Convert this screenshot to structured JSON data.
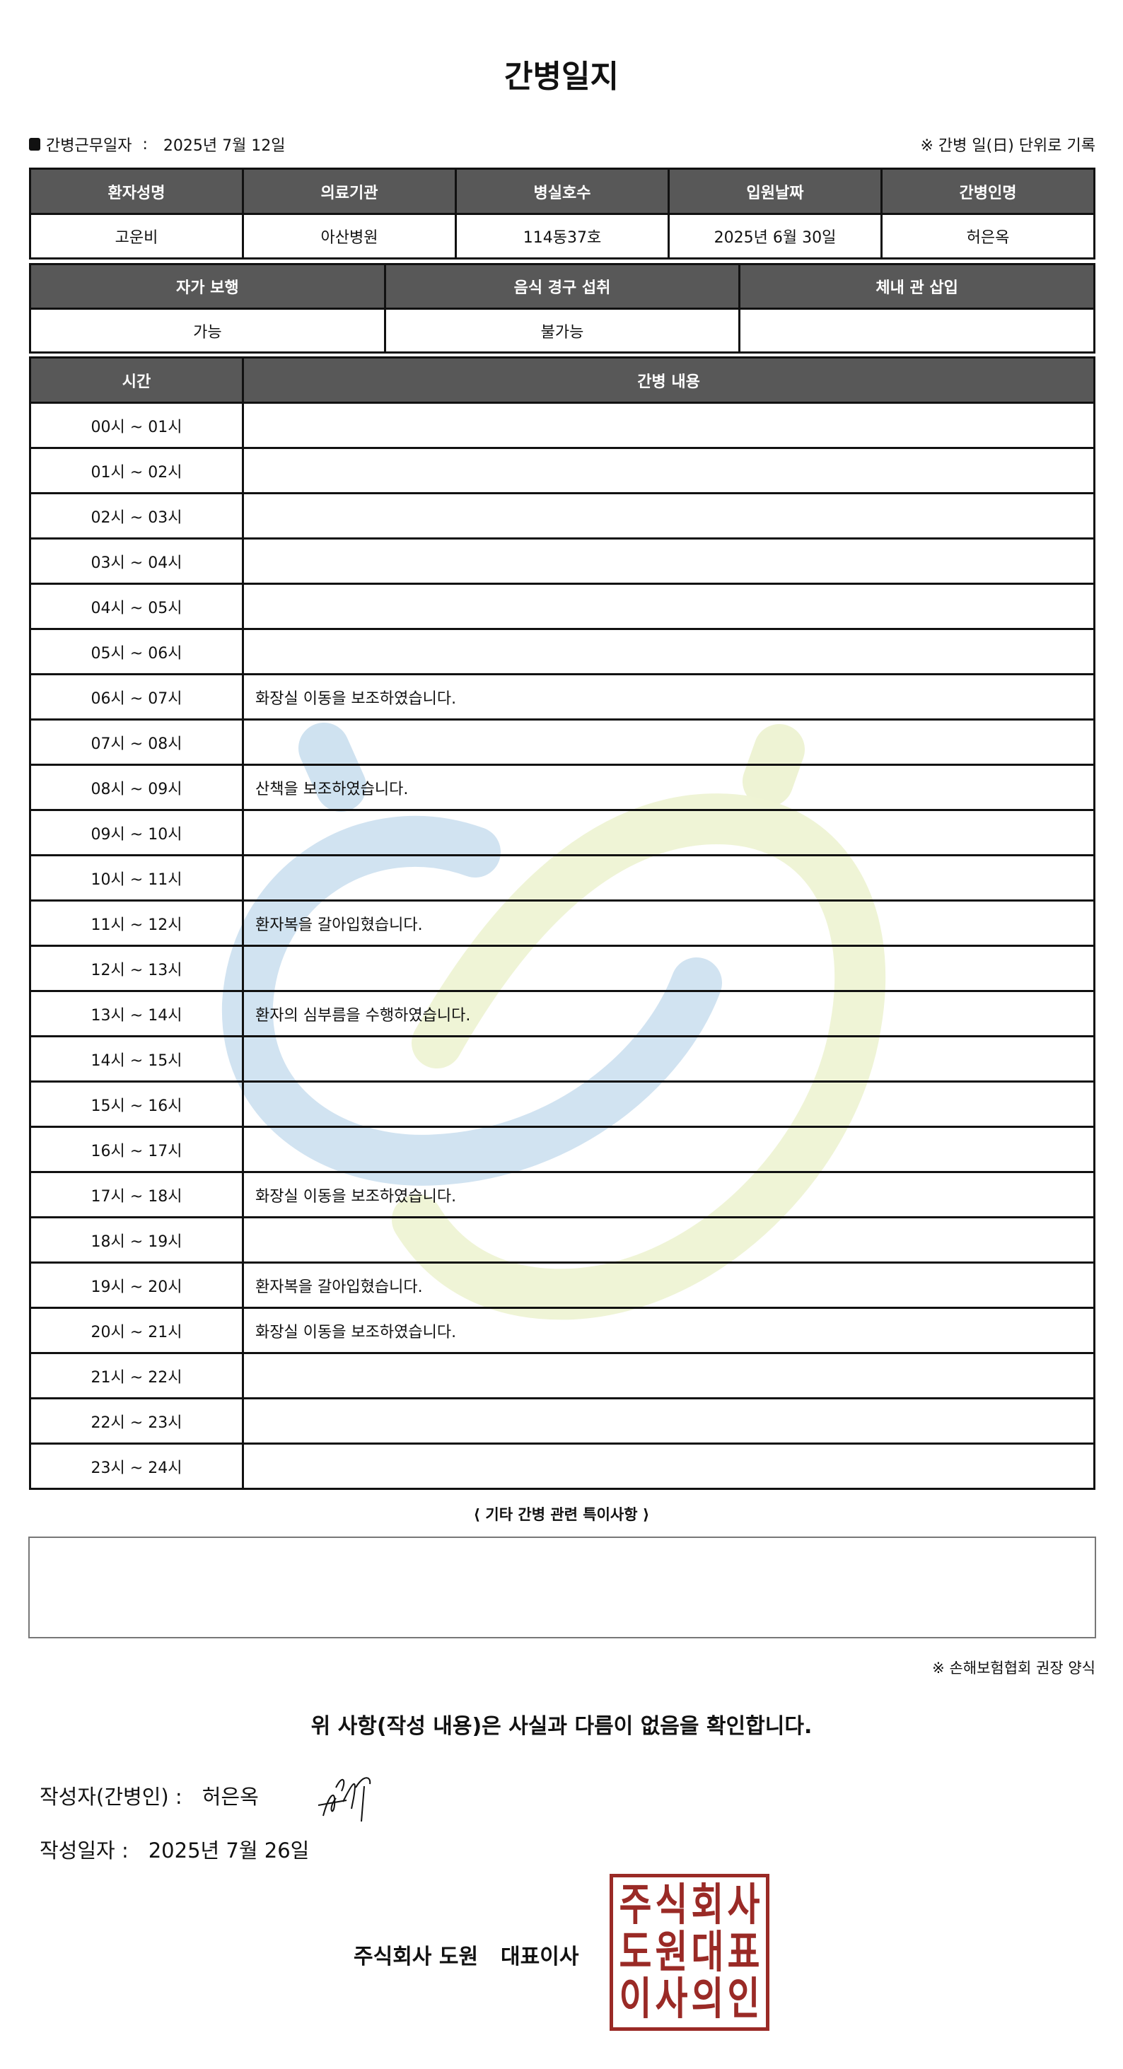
{
  "title": "간병일지",
  "work_date_label": "간병근무일자",
  "work_date": "2025년 7월 12일",
  "unit_note": "※ 간병 일(日) 단위로 기록",
  "patient_table": {
    "headers": [
      "환자성명",
      "의료기관",
      "병실호수",
      "입원날짜",
      "간병인명"
    ],
    "values": [
      "고운비",
      "아산병원",
      "114동37호",
      "2025년 6월 30일",
      "허은옥"
    ]
  },
  "status_table": {
    "headers": [
      "자가 보행",
      "음식 경구 섭취",
      "체내 관 삽입"
    ],
    "values": [
      "가능",
      "불가능",
      ""
    ]
  },
  "log_table": {
    "headers": [
      "시간",
      "간병 내용"
    ],
    "rows": [
      [
        "00시 ~ 01시",
        ""
      ],
      [
        "01시 ~ 02시",
        ""
      ],
      [
        "02시 ~ 03시",
        ""
      ],
      [
        "03시 ~ 04시",
        ""
      ],
      [
        "04시 ~ 05시",
        ""
      ],
      [
        "05시 ~ 06시",
        ""
      ],
      [
        "06시 ~ 07시",
        "화장실 이동을 보조하였습니다."
      ],
      [
        "07시 ~ 08시",
        ""
      ],
      [
        "08시 ~ 09시",
        "산책을 보조하였습니다."
      ],
      [
        "09시 ~ 10시",
        ""
      ],
      [
        "10시 ~ 11시",
        ""
      ],
      [
        "11시 ~ 12시",
        "환자복을 갈아입혔습니다."
      ],
      [
        "12시 ~ 13시",
        ""
      ],
      [
        "13시 ~ 14시",
        "환자의 심부름을 수행하였습니다."
      ],
      [
        "14시 ~ 15시",
        ""
      ],
      [
        "15시 ~ 16시",
        ""
      ],
      [
        "16시 ~ 17시",
        ""
      ],
      [
        "17시 ~ 18시",
        "화장실 이동을 보조하였습니다."
      ],
      [
        "18시 ~ 19시",
        ""
      ],
      [
        "19시 ~ 20시",
        "환자복을 갈아입혔습니다."
      ],
      [
        "20시 ~ 21시",
        "화장실 이동을 보조하였습니다."
      ],
      [
        "21시 ~ 22시",
        ""
      ],
      [
        "22시 ~ 23시",
        ""
      ],
      [
        "23시 ~ 24시",
        ""
      ]
    ]
  },
  "notes_label": "⟨ 기타 간병 관련 특이사항 ⟩",
  "notes": "",
  "footnote": "※ 손해보험협회 권장 양식",
  "confirm": "위 사항(작성 내용)은 사실과 다름이 없음을 확인합니다.",
  "writer_label": "작성자(간병인) :",
  "writer": "허은옥",
  "write_date_label": "작성일자 :",
  "write_date": "2025년 7월 26일",
  "company": "주식회사 도원",
  "ceo_label": "대표이사",
  "stamp_text": [
    "주",
    "식",
    "회",
    "사",
    "도",
    "원",
    "대",
    "표",
    "이",
    "사",
    "의",
    "인"
  ],
  "colors": {
    "header_bg": "#585858",
    "stamp": "#9a2a26",
    "watermark_blue": "#cfe2f0",
    "watermark_green": "#eef3d4"
  }
}
